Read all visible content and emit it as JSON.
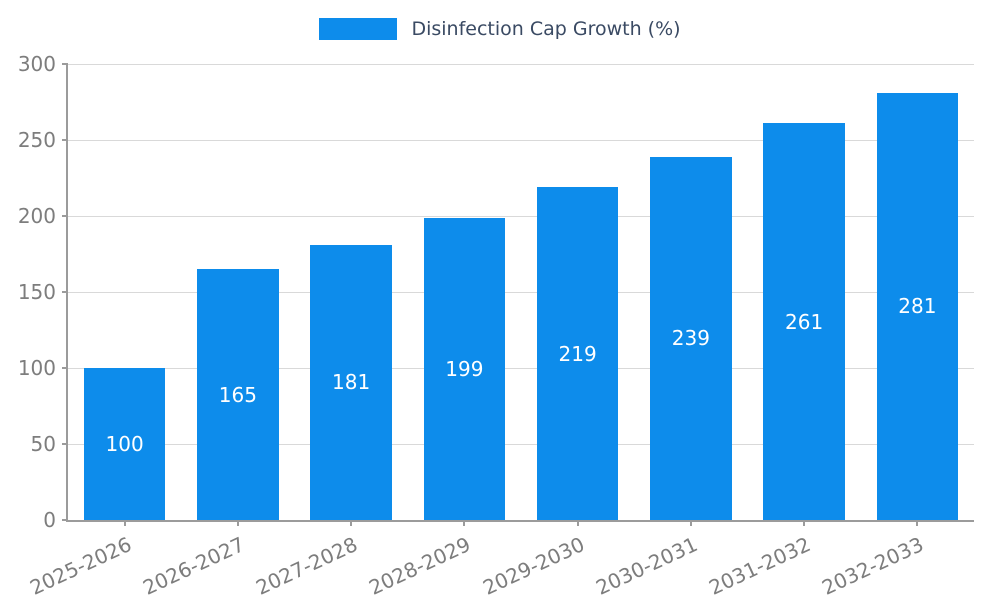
{
  "chart_data": {
    "type": "bar",
    "title": "Disinfection Cap Growth (%)",
    "legend_label": "Disinfection Cap Growth (%)",
    "legend_position": "top-center",
    "categories": [
      "2025-2026",
      "2026-2027",
      "2027-2028",
      "2028-2029",
      "2029-2030",
      "2030-2031",
      "2031-2032",
      "2032-2033"
    ],
    "values": [
      100,
      165,
      181,
      199,
      219,
      239,
      261,
      281
    ],
    "xlabel": "",
    "ylabel": "",
    "ylim": [
      0,
      300
    ],
    "yticks": [
      0,
      50,
      100,
      150,
      200,
      250,
      300
    ],
    "grid": true,
    "bar_color": "#0d8ceb",
    "value_label_color": "#ffffff",
    "axis_color": "#9b9b9b",
    "tick_label_color": "#7d7d7d",
    "gridline_color": "#d9d9d9",
    "x_label_rotation_deg": 25
  }
}
